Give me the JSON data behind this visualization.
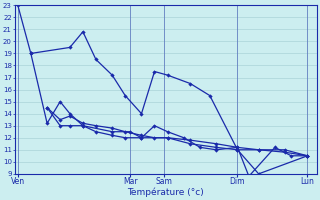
{
  "xlabel": "Température (°c)",
  "background_color": "#cceef0",
  "grid_color": "#aad4d8",
  "line_color": "#1a2aaa",
  "ylim_min": 9,
  "ylim_max": 23,
  "xlim_min": 0,
  "xlim_max": 9.3,
  "day_labels": [
    "Ven",
    "Mar",
    "Sam",
    "Dim",
    "Lun"
  ],
  "day_positions": [
    0.1,
    3.55,
    4.6,
    6.85,
    9.0
  ],
  "series1_x": [
    0.1,
    0.5,
    1.7,
    2.1,
    2.5,
    3.0,
    3.4,
    3.9,
    4.3,
    4.7,
    5.4,
    6.0,
    6.85,
    7.5,
    9.0
  ],
  "series1_y": [
    23,
    19,
    19.5,
    20.8,
    18.5,
    17.2,
    15.5,
    14.0,
    17.5,
    17.2,
    16.5,
    15.5,
    11.0,
    9.0,
    10.5
  ],
  "series2_x": [
    0.5,
    1.0,
    1.4,
    1.7,
    2.1,
    3.0,
    3.55,
    3.9,
    4.3,
    4.7,
    5.2,
    5.7,
    6.2,
    6.85,
    7.2,
    8.0,
    8.5,
    9.0
  ],
  "series2_y": [
    19,
    13.2,
    15.0,
    14.0,
    13.0,
    12.5,
    12.5,
    12.0,
    13.0,
    12.5,
    12.0,
    11.2,
    11.0,
    11.2,
    8.8,
    11.2,
    10.5,
    10.5
  ],
  "series3_x": [
    1.0,
    1.4,
    1.7,
    2.1,
    2.5,
    3.0,
    3.4,
    3.9,
    4.3,
    4.7,
    5.4,
    6.2,
    6.85,
    7.5,
    8.3,
    9.0
  ],
  "series3_y": [
    14.5,
    13.5,
    13.8,
    13.2,
    13.0,
    12.8,
    12.5,
    12.2,
    12.0,
    12.0,
    11.8,
    11.5,
    11.2,
    11.0,
    11.0,
    10.5
  ],
  "series4_x": [
    1.0,
    1.4,
    1.7,
    2.1,
    2.5,
    3.0,
    3.4,
    3.9,
    4.7,
    5.4,
    6.2,
    6.85,
    7.5,
    8.3,
    9.0
  ],
  "series4_y": [
    14.5,
    13.0,
    13.0,
    13.0,
    12.5,
    12.2,
    12.0,
    12.0,
    12.0,
    11.5,
    11.2,
    11.0,
    11.0,
    10.8,
    10.5
  ]
}
